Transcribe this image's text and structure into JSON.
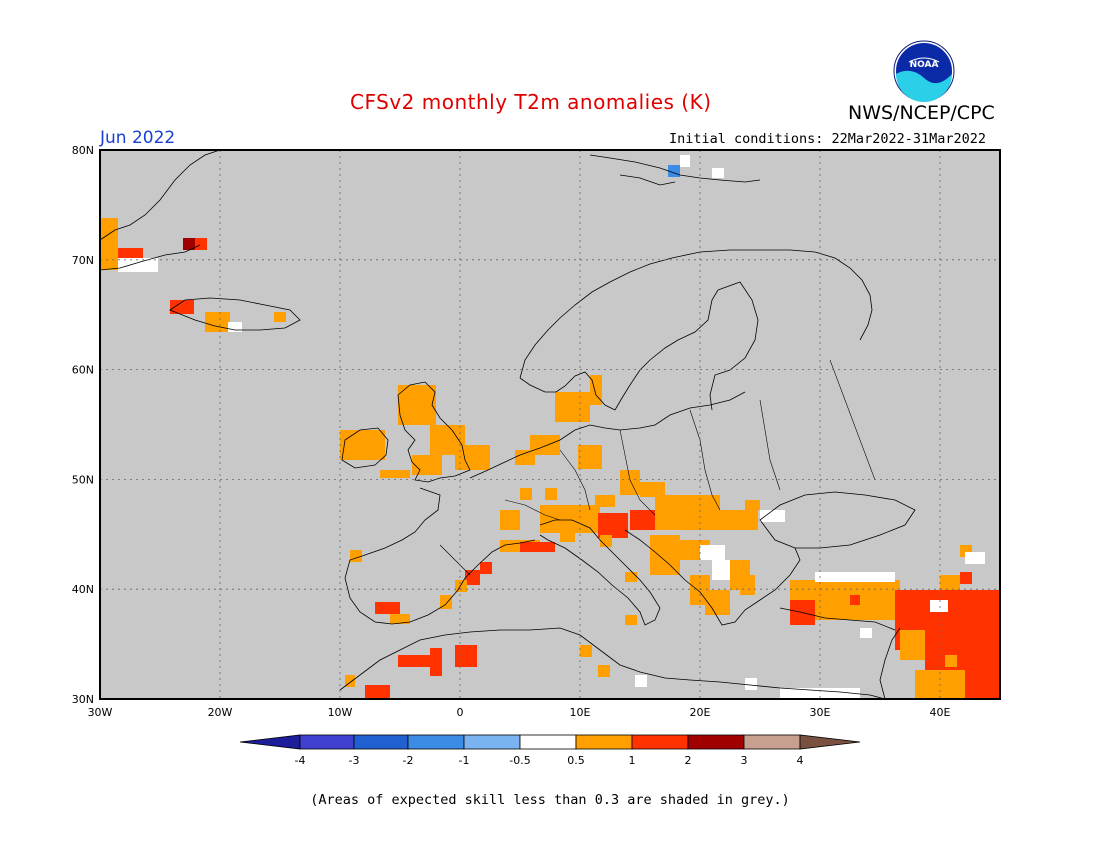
{
  "header": {
    "title": "CFSv2 monthly T2m anomalies (K)",
    "agency": "NWS/NCEP/CPC",
    "logo_text": "NOAA",
    "month": "Jun 2022",
    "initial_conditions": "Initial conditions: 22Mar2022-31Mar2022"
  },
  "map": {
    "lat_labels": [
      "80N",
      "70N",
      "60N",
      "50N",
      "40N",
      "30N"
    ],
    "lon_labels": [
      "30W",
      "20W",
      "10W",
      "0",
      "10E",
      "20E",
      "30E",
      "40E"
    ],
    "background_color": "#c8c8c8",
    "region": {
      "lon_min": -30,
      "lon_max": 45,
      "lat_min": 30,
      "lat_max": 80
    }
  },
  "colorbar": {
    "labels": [
      "-4",
      "-3",
      "-2",
      "-1",
      "-0.5",
      "0.5",
      "1",
      "2",
      "3",
      "4"
    ],
    "colors": [
      "#1e1e9a",
      "#4040d0",
      "#2060d0",
      "#3c8ce6",
      "#7ab4f0",
      "#ffffff",
      "#ffa000",
      "#ff3200",
      "#a00000",
      "#c8a090",
      "#7a5040"
    ]
  },
  "footnote": "(Areas of expected skill less than 0.3 are shaded in grey.)"
}
